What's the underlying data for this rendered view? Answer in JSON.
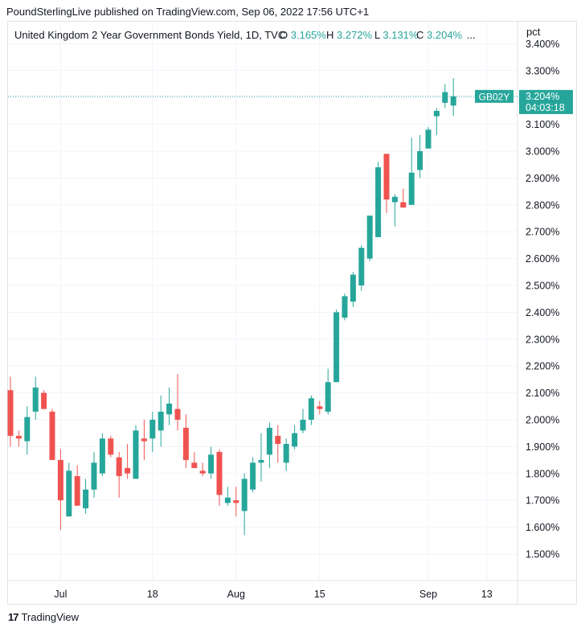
{
  "header": {
    "published": "PoundSterlingLive published on TradingView.com, Sep 06, 2022 17:56 UTC+1"
  },
  "legend": {
    "title": "United Kingdom 2 Year Government Bonds Yield, 1D, TVC",
    "o_label": "O",
    "o_value": "3.165%",
    "h_label": "H",
    "h_value": "3.272%",
    "l_label": "L",
    "l_value": "3.131%",
    "c_label": "C",
    "c_value": "3.204%",
    "ellipsis": "..."
  },
  "footer": {
    "logo_glyph": "17",
    "brand": "TradingView"
  },
  "colors": {
    "up": "#26a69a",
    "down": "#ef5350",
    "grid": "#f0f3fa",
    "text": "#131722"
  },
  "chart_data": {
    "type": "candlestick",
    "symbol": "GB02Y",
    "unit": "pct",
    "ylim": [
      1.4,
      3.4
    ],
    "y_ticks": [
      "1.500%",
      "1.600%",
      "1.700%",
      "1.800%",
      "1.900%",
      "2.000%",
      "2.100%",
      "2.200%",
      "2.300%",
      "2.400%",
      "2.500%",
      "2.600%",
      "2.700%",
      "2.800%",
      "2.900%",
      "3.000%",
      "3.100%",
      "3.200%",
      "3.300%",
      "3.400%"
    ],
    "x_ticks": [
      {
        "label": "Jul",
        "bar": 6
      },
      {
        "label": "18",
        "bar": 17
      },
      {
        "label": "Aug",
        "bar": 27
      },
      {
        "label": "15",
        "bar": 37
      },
      {
        "label": "Sep",
        "bar": 50
      },
      {
        "label": "13",
        "bar": 57
      }
    ],
    "last_price": {
      "label": "GB02Y",
      "value": "3.204%",
      "countdown": "04:03:18",
      "y": 3.204
    },
    "candles": [
      {
        "o": 2.11,
        "h": 2.16,
        "l": 1.9,
        "c": 1.94
      },
      {
        "o": 1.94,
        "h": 1.96,
        "l": 1.9,
        "c": 1.93
      },
      {
        "o": 1.92,
        "h": 2.05,
        "l": 1.87,
        "c": 2.01
      },
      {
        "o": 2.03,
        "h": 2.16,
        "l": 2.0,
        "c": 2.12
      },
      {
        "o": 2.1,
        "h": 2.11,
        "l": 2.04,
        "c": 2.04
      },
      {
        "o": 2.03,
        "h": 2.04,
        "l": 1.85,
        "c": 1.85
      },
      {
        "o": 1.85,
        "h": 1.89,
        "l": 1.59,
        "c": 1.7
      },
      {
        "o": 1.64,
        "h": 1.84,
        "l": 1.64,
        "c": 1.81
      },
      {
        "o": 1.79,
        "h": 1.83,
        "l": 1.68,
        "c": 1.68
      },
      {
        "o": 1.67,
        "h": 1.78,
        "l": 1.65,
        "c": 1.74
      },
      {
        "o": 1.74,
        "h": 1.88,
        "l": 1.71,
        "c": 1.84
      },
      {
        "o": 1.8,
        "h": 1.95,
        "l": 1.79,
        "c": 1.93
      },
      {
        "o": 1.93,
        "h": 1.94,
        "l": 1.86,
        "c": 1.87
      },
      {
        "o": 1.86,
        "h": 1.88,
        "l": 1.71,
        "c": 1.79
      },
      {
        "o": 1.82,
        "h": 1.91,
        "l": 1.78,
        "c": 1.8
      },
      {
        "o": 1.78,
        "h": 1.98,
        "l": 1.78,
        "c": 1.96
      },
      {
        "o": 1.93,
        "h": 2.0,
        "l": 1.85,
        "c": 1.92
      },
      {
        "o": 1.93,
        "h": 2.03,
        "l": 1.88,
        "c": 2.0
      },
      {
        "o": 1.96,
        "h": 2.09,
        "l": 1.9,
        "c": 2.03
      },
      {
        "o": 2.02,
        "h": 2.12,
        "l": 1.98,
        "c": 2.06
      },
      {
        "o": 2.04,
        "h": 2.17,
        "l": 1.96,
        "c": 2.0
      },
      {
        "o": 1.97,
        "h": 2.02,
        "l": 1.82,
        "c": 1.85
      },
      {
        "o": 1.84,
        "h": 1.88,
        "l": 1.82,
        "c": 1.82
      },
      {
        "o": 1.81,
        "h": 1.84,
        "l": 1.79,
        "c": 1.8
      },
      {
        "o": 1.8,
        "h": 1.9,
        "l": 1.78,
        "c": 1.87
      },
      {
        "o": 1.88,
        "h": 1.89,
        "l": 1.68,
        "c": 1.72
      },
      {
        "o": 1.69,
        "h": 1.75,
        "l": 1.68,
        "c": 1.71
      },
      {
        "o": 1.7,
        "h": 1.75,
        "l": 1.64,
        "c": 1.69
      },
      {
        "o": 1.66,
        "h": 1.8,
        "l": 1.57,
        "c": 1.78
      },
      {
        "o": 1.74,
        "h": 1.86,
        "l": 1.73,
        "c": 1.84
      },
      {
        "o": 1.84,
        "h": 1.95,
        "l": 1.77,
        "c": 1.85
      },
      {
        "o": 1.87,
        "h": 1.99,
        "l": 1.82,
        "c": 1.97
      },
      {
        "o": 1.94,
        "h": 1.98,
        "l": 1.84,
        "c": 1.91
      },
      {
        "o": 1.84,
        "h": 1.93,
        "l": 1.81,
        "c": 1.91
      },
      {
        "o": 1.9,
        "h": 1.98,
        "l": 1.89,
        "c": 1.95
      },
      {
        "o": 1.96,
        "h": 2.04,
        "l": 1.95,
        "c": 2.0
      },
      {
        "o": 2.0,
        "h": 2.09,
        "l": 1.98,
        "c": 2.08
      },
      {
        "o": 2.05,
        "h": 2.07,
        "l": 2.02,
        "c": 2.04
      },
      {
        "o": 2.03,
        "h": 2.19,
        "l": 2.02,
        "c": 2.14
      },
      {
        "o": 2.14,
        "h": 2.41,
        "l": 2.14,
        "c": 2.4
      },
      {
        "o": 2.38,
        "h": 2.47,
        "l": 2.37,
        "c": 2.46
      },
      {
        "o": 2.44,
        "h": 2.55,
        "l": 2.42,
        "c": 2.54
      },
      {
        "o": 2.5,
        "h": 2.65,
        "l": 2.48,
        "c": 2.64
      },
      {
        "o": 2.6,
        "h": 2.76,
        "l": 2.59,
        "c": 2.76
      },
      {
        "o": 2.68,
        "h": 2.96,
        "l": 2.68,
        "c": 2.94
      },
      {
        "o": 2.99,
        "h": 2.99,
        "l": 2.77,
        "c": 2.82
      },
      {
        "o": 2.81,
        "h": 2.84,
        "l": 2.72,
        "c": 2.83
      },
      {
        "o": 2.81,
        "h": 2.86,
        "l": 2.79,
        "c": 2.79
      },
      {
        "o": 2.8,
        "h": 3.05,
        "l": 2.8,
        "c": 2.92
      },
      {
        "o": 2.93,
        "h": 3.06,
        "l": 2.9,
        "c": 3.0
      },
      {
        "o": 3.01,
        "h": 3.09,
        "l": 3.01,
        "c": 3.08
      },
      {
        "o": 3.13,
        "h": 3.16,
        "l": 3.06,
        "c": 3.15
      },
      {
        "o": 3.18,
        "h": 3.25,
        "l": 3.16,
        "c": 3.22
      },
      {
        "o": 3.17,
        "h": 3.272,
        "l": 3.131,
        "c": 3.204
      }
    ]
  }
}
